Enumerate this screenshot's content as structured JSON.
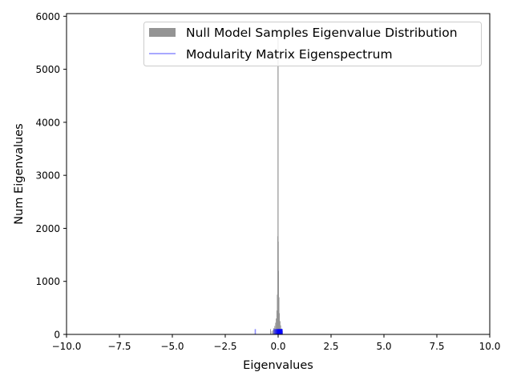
{
  "chart_data": {
    "type": "histogram",
    "xlabel": "Eigenvalues",
    "ylabel": "Num Eigenvalues",
    "xlim": [
      -10,
      10
    ],
    "ylim": [
      0,
      6050
    ],
    "x_ticks": [
      -10,
      -7.5,
      -5,
      -2.5,
      0,
      2.5,
      5,
      7.5,
      10
    ],
    "x_tick_labels": [
      "−10.0",
      "−7.5",
      "−5.0",
      "−2.5",
      "0.0",
      "2.5",
      "5.0",
      "7.5",
      "10.0"
    ],
    "y_ticks": [
      0,
      1000,
      2000,
      3000,
      4000,
      5000,
      6000
    ],
    "y_tick_labels": [
      "0",
      "1000",
      "2000",
      "3000",
      "4000",
      "5000",
      "6000"
    ],
    "grid": false,
    "legend_position": "upper-right",
    "series": [
      {
        "name": "Null Model Samples Eigenvalue Distribution",
        "kind": "bars",
        "color": "#949494",
        "bins": [
          {
            "x": -0.36,
            "y": 100
          },
          {
            "x": -0.3,
            "y": 60
          },
          {
            "x": -0.24,
            "y": 80
          },
          {
            "x": -0.2,
            "y": 120
          },
          {
            "x": -0.16,
            "y": 160
          },
          {
            "x": -0.12,
            "y": 220
          },
          {
            "x": -0.09,
            "y": 300
          },
          {
            "x": -0.06,
            "y": 450
          },
          {
            "x": -0.04,
            "y": 750
          },
          {
            "x": -0.02,
            "y": 1850
          },
          {
            "x": -0.01,
            "y": 5750
          },
          {
            "x": 0.0,
            "y": 5600
          },
          {
            "x": 0.01,
            "y": 1750
          },
          {
            "x": 0.02,
            "y": 1200
          },
          {
            "x": 0.04,
            "y": 700
          },
          {
            "x": 0.06,
            "y": 400
          },
          {
            "x": 0.09,
            "y": 250
          },
          {
            "x": 0.12,
            "y": 170
          },
          {
            "x": 0.16,
            "y": 110
          },
          {
            "x": 0.2,
            "y": 60
          }
        ],
        "bin_width": 0.035
      },
      {
        "name": "Modularity Matrix Eigenspectrum",
        "kind": "vlines",
        "color": "#0000ff",
        "legend_color": "#8c8cff",
        "opacity": 0.45,
        "height": 100,
        "x": [
          -1.08,
          -0.2,
          -0.15,
          -0.12,
          -0.09,
          -0.07,
          -0.05,
          -0.03,
          -0.02,
          -0.01,
          0.0,
          0.01,
          0.02,
          0.03,
          0.04,
          0.05,
          0.06,
          0.07,
          0.08,
          0.09,
          0.1,
          0.11,
          0.12,
          0.13,
          0.14,
          0.15,
          0.16,
          0.17,
          0.18,
          0.19
        ]
      }
    ]
  }
}
